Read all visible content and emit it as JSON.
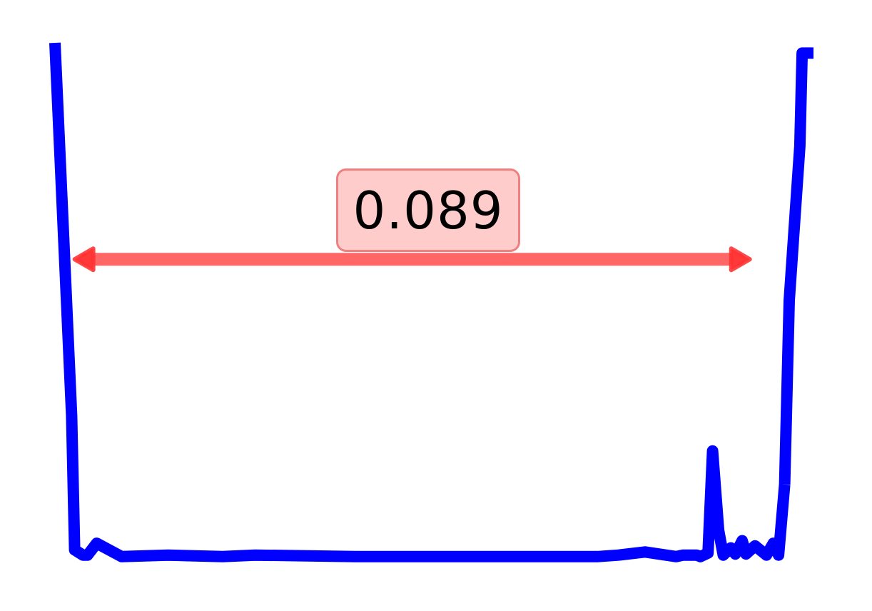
{
  "chart_data": {
    "type": "line",
    "title": "",
    "xlabel": "",
    "ylabel": "",
    "grid": false,
    "legend": "none",
    "xlim": [
      0,
      1
    ],
    "ylim": [
      0,
      1
    ],
    "series": [
      {
        "color": "#0000ff",
        "x": [
          0.0,
          0.022,
          0.026,
          0.037,
          0.043,
          0.055,
          0.088,
          0.149,
          0.221,
          0.264,
          0.396,
          0.514,
          0.627,
          0.715,
          0.743,
          0.778,
          0.819,
          0.828,
          0.837,
          0.846,
          0.851,
          0.861,
          0.867,
          0.875,
          0.881,
          0.891,
          0.897,
          0.906,
          0.911,
          0.923,
          0.938,
          0.947,
          0.954,
          0.962
        ],
        "y": [
          1.0,
          0.276,
          0.016,
          0.006,
          0.006,
          0.029,
          0.003,
          0.006,
          0.003,
          0.006,
          0.003,
          0.003,
          0.003,
          0.003,
          0.006,
          0.012,
          0.003,
          0.006,
          0.006,
          0.006,
          0.003,
          0.01,
          0.208,
          0.054,
          0.006,
          0.02,
          0.008,
          0.034,
          0.008,
          0.024,
          0.006,
          0.029,
          0.006,
          0.143
        ]
      },
      {
        "color": "#0000ff",
        "x": [
          0.962,
          0.968,
          0.982,
          0.985,
          1.0
        ],
        "y": [
          0.143,
          0.5,
          0.8,
          0.98,
          0.98
        ]
      }
    ],
    "annotation": {
      "label": "0.089",
      "color": "#ff3333",
      "x_start": 0.026,
      "x_end": 0.916,
      "y": 0.58
    }
  }
}
